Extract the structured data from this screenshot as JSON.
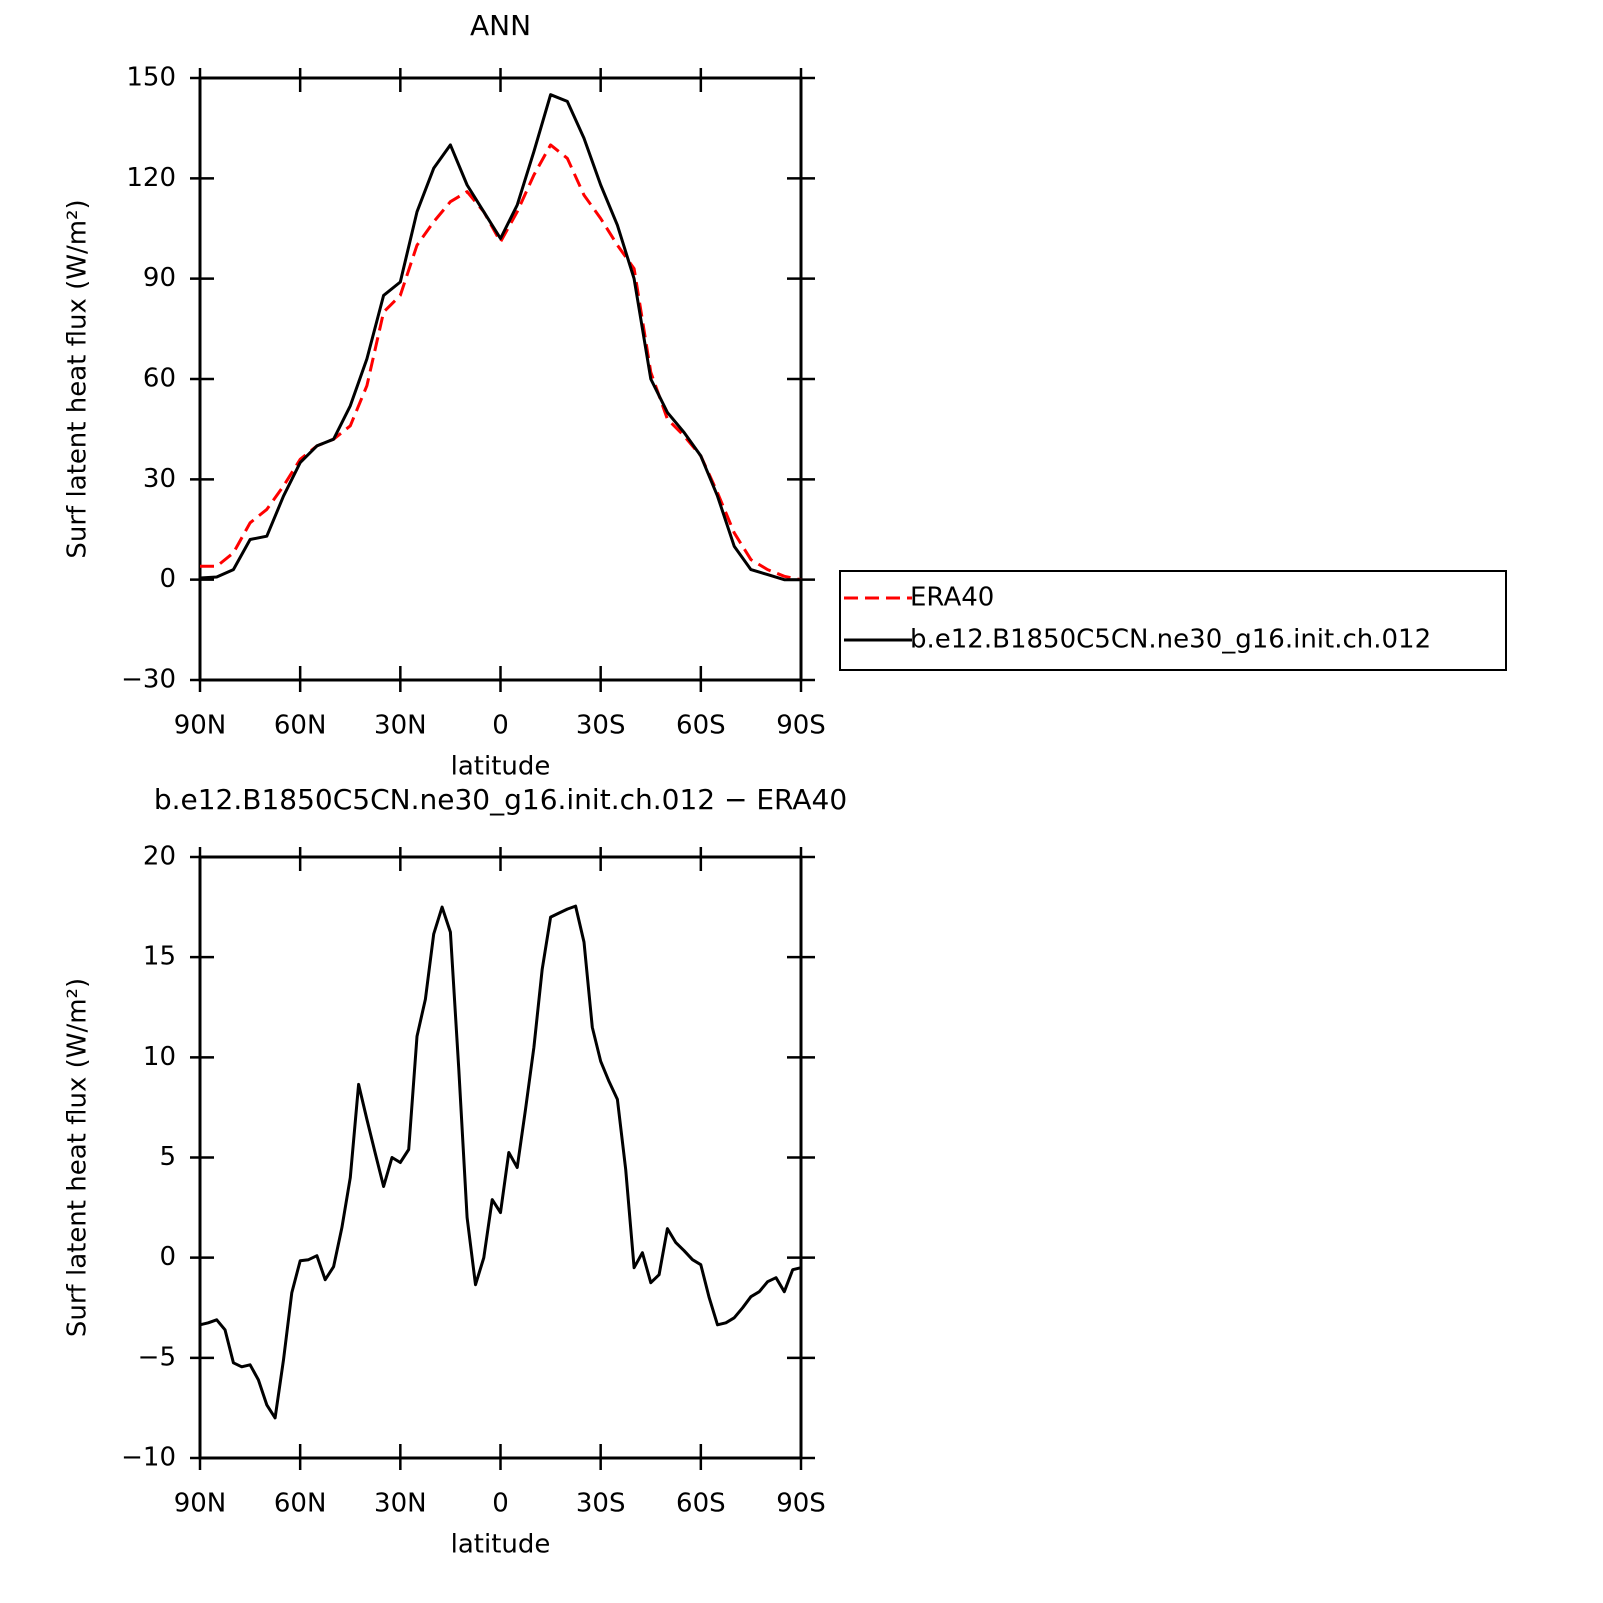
{
  "chart_data": [
    {
      "type": "line",
      "title": "ANN",
      "ylabel": "Surf latent heat flux (W/m²)",
      "xlabel": "latitude",
      "x": [
        90,
        85,
        80,
        75,
        70,
        65,
        60,
        55,
        50,
        45,
        40,
        35,
        30,
        25,
        20,
        15,
        10,
        5,
        0,
        -5,
        -10,
        -15,
        -20,
        -25,
        -30,
        -35,
        -40,
        -45,
        -50,
        -55,
        -60,
        -65,
        -70,
        -75,
        -80,
        -85,
        -90
      ],
      "xlim": [
        90,
        -90
      ],
      "xticks": [
        {
          "value": 90,
          "label": "90N"
        },
        {
          "value": 60,
          "label": "60N"
        },
        {
          "value": 30,
          "label": "30N"
        },
        0,
        {
          "value": -30,
          "label": "30S"
        },
        {
          "value": -60,
          "label": "60S"
        },
        {
          "value": -90,
          "label": "90S"
        }
      ],
      "ylim": [
        -30,
        150
      ],
      "yticks": [
        {
          "value": -30,
          "label": "−30"
        },
        0,
        30,
        60,
        90,
        120,
        150
      ],
      "legend": "right",
      "series": [
        {
          "name": "ERA40",
          "color": "#ff0000",
          "linestyle": "dashed",
          "values": [
            4,
            4,
            8,
            17,
            21,
            28,
            36,
            40,
            42,
            46,
            58,
            80,
            85,
            100,
            107,
            113,
            116,
            110,
            101,
            110,
            121,
            130,
            126,
            115,
            108,
            100,
            93,
            62,
            48,
            43,
            37,
            26,
            14,
            6,
            3,
            1,
            0
          ]
        },
        {
          "name": "b.e12.B1850C5CN.ne30_g16.init.ch.012",
          "color": "#000000",
          "linestyle": "solid",
          "values": [
            0.5,
            0.8,
            3,
            12,
            13,
            25,
            35,
            40,
            42,
            52,
            66,
            85,
            89,
            110,
            123,
            130,
            118,
            110,
            102,
            112,
            128,
            145,
            143,
            132,
            118,
            106,
            90,
            60,
            50,
            44,
            37,
            25,
            10,
            3,
            1.5,
            0,
            0
          ]
        }
      ]
    },
    {
      "type": "line",
      "title": "b.e12.B1850C5CN.ne30_g16.init.ch.012 − ERA40",
      "ylabel": "Surf latent heat flux (W/m²)",
      "xlabel": "latitude",
      "x": [
        90,
        87.5,
        85,
        82.5,
        80,
        77.5,
        75,
        72.5,
        70,
        67.5,
        65,
        62.5,
        60,
        57.5,
        55,
        52.5,
        50,
        47.5,
        45,
        42.5,
        40,
        37.5,
        35,
        32.5,
        30,
        27.5,
        25,
        22.5,
        20,
        17.5,
        15,
        12.5,
        10,
        7.5,
        5,
        2.5,
        0,
        -2.5,
        -5,
        -7.5,
        -10,
        -12.5,
        -15,
        -17.5,
        -20,
        -22.5,
        -25,
        -27.5,
        -30,
        -32.5,
        -35,
        -37.5,
        -40,
        -42.5,
        -45,
        -47.5,
        -50,
        -52.5,
        -55,
        -57.5,
        -60,
        -62.5,
        -65,
        -67.5,
        -70,
        -72.5,
        -75,
        -77.5,
        -80,
        -82.5,
        -85,
        -87.5,
        -90
      ],
      "xlim": [
        90,
        -90
      ],
      "xticks": [
        {
          "value": 90,
          "label": "90N"
        },
        {
          "value": 60,
          "label": "60N"
        },
        {
          "value": 30,
          "label": "30N"
        },
        0,
        {
          "value": -30,
          "label": "30S"
        },
        {
          "value": -60,
          "label": "60S"
        },
        {
          "value": -90,
          "label": "90S"
        }
      ],
      "ylim": [
        -10,
        20
      ],
      "yticks": [
        {
          "value": -10,
          "label": "−10"
        },
        {
          "value": -5,
          "label": "−5"
        },
        0,
        5,
        10,
        15,
        20
      ],
      "series": [
        {
          "color": "#000000",
          "linestyle": "solid",
          "values": [
            -3.35,
            -3.25,
            -3.1,
            -3.6,
            -5.25,
            -5.45,
            -5.35,
            -6.1,
            -7.35,
            -8.0,
            -5.1,
            -1.75,
            -0.15,
            -0.1,
            0.1,
            -1.1,
            -0.45,
            1.5,
            4.0,
            8.65,
            6.9,
            5.2,
            3.55,
            5.0,
            4.75,
            5.4,
            11.05,
            12.9,
            16.15,
            17.5,
            16.25,
            9.4,
            2.0,
            -1.35,
            0,
            2.9,
            2.25,
            5.25,
            4.5,
            7.4,
            10.5,
            14.4,
            17.0,
            17.2,
            17.4,
            17.55,
            15.75,
            11.5,
            9.8,
            8.8,
            7.9,
            4.4,
            -0.5,
            0.25,
            -1.25,
            -0.85,
            1.45,
            0.75,
            0.35,
            -0.1,
            -0.35,
            -2.0,
            -3.35,
            -3.25,
            -3.0,
            -2.5,
            -1.95,
            -1.7,
            -1.2,
            -1.0,
            -1.7,
            -0.6,
            -0.5
          ]
        }
      ]
    }
  ]
}
